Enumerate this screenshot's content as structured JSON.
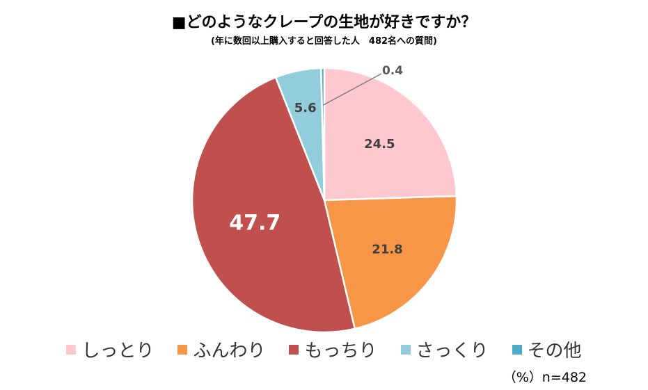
{
  "chart_data": {
    "type": "pie",
    "title": "■どのようなクレープの生地が好きですか？",
    "subtitle": "(年に数回以上購入すると回答した人　482名への質問)",
    "unit_note": "（%）n=482",
    "slices": [
      {
        "name": "しっとり",
        "value": 24.5,
        "label": "24.5",
        "color": "#FFC7CE"
      },
      {
        "name": "ふんわり",
        "value": 21.8,
        "label": "21.8",
        "color": "#F79646"
      },
      {
        "name": "もっちり",
        "value": 47.7,
        "label": "47.7",
        "color": "#C0504D"
      },
      {
        "name": "さっくり",
        "value": 5.6,
        "label": "5.6",
        "color": "#92CDDC"
      },
      {
        "name": "その他",
        "value": 0.4,
        "label": "0.4",
        "color": "#4BACC6"
      }
    ],
    "start_angle": "12 o'clock",
    "direction": "clockwise",
    "legend_position": "bottom"
  }
}
